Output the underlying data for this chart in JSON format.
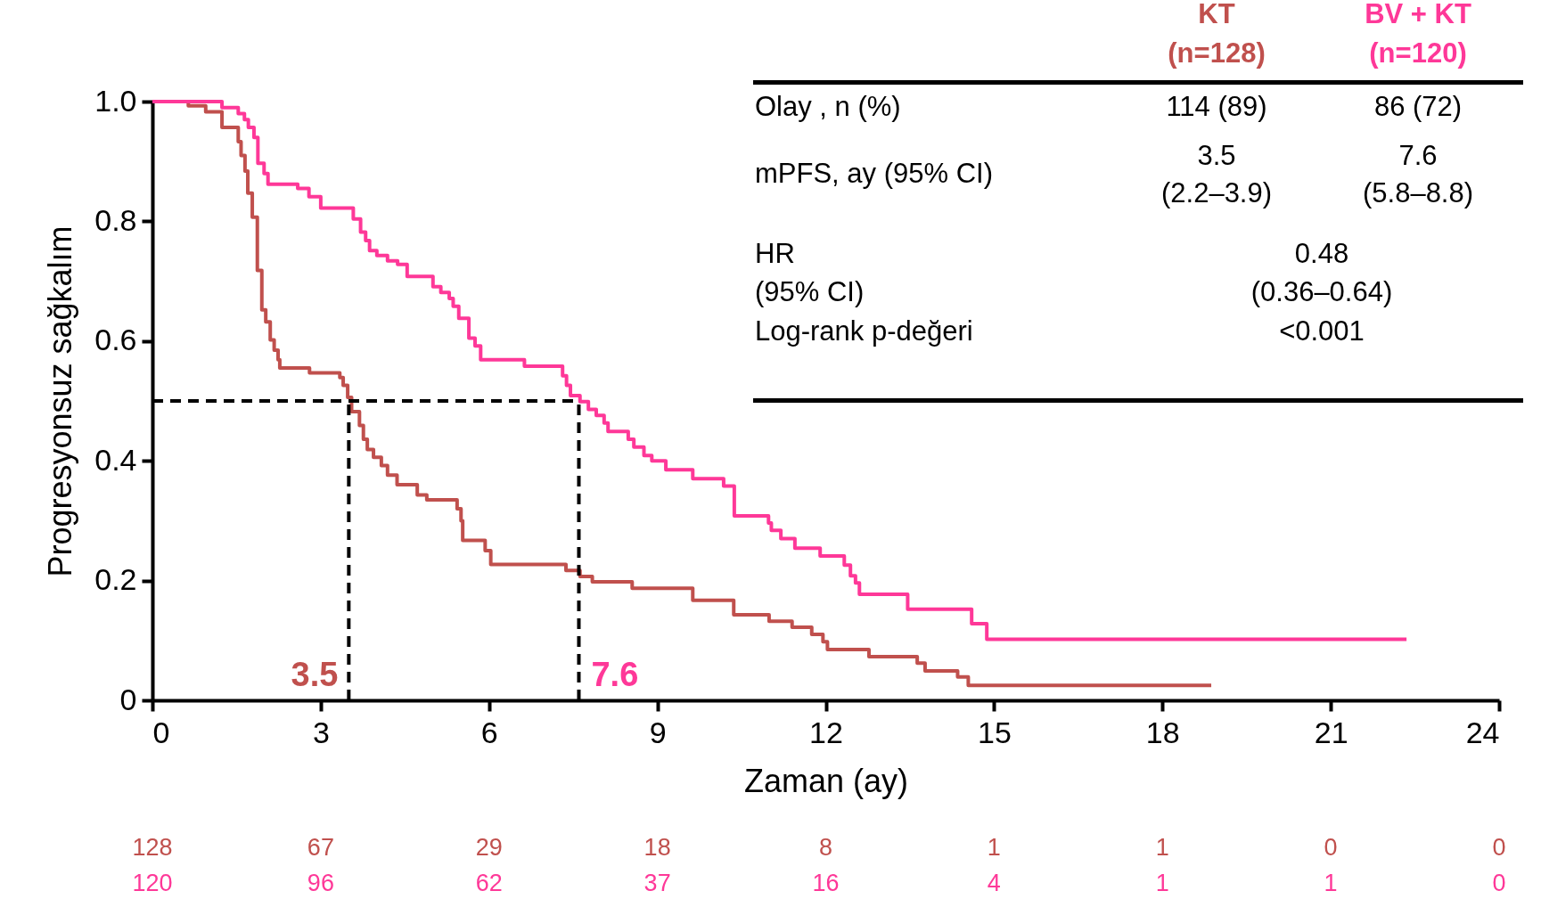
{
  "chart_data": {
    "type": "step",
    "xlabel": "Zaman  (ay)",
    "ylabel": "Progresyonsuz sağkalım",
    "xlim": [
      0,
      24
    ],
    "xticks": [
      0,
      3,
      6,
      9,
      12,
      15,
      18,
      21,
      24
    ],
    "ylim": [
      0,
      1
    ],
    "yticks": [
      {
        "value": 0,
        "label": "0"
      },
      0.2,
      0.4,
      0.6,
      0.8,
      {
        "value": 1,
        "label": "1.0"
      }
    ],
    "line_style": "solid",
    "series": [
      {
        "color": "#c0504d",
        "x": [
          0,
          0.64,
          0.95,
          1.24,
          1.53,
          1.58,
          1.65,
          1.7,
          1.78,
          1.87,
          1.95,
          2.02,
          2.1,
          2.17,
          2.24,
          2.27,
          2.8,
          3.34,
          3.4,
          3.48,
          3.55,
          3.69,
          3.76,
          3.83,
          3.94,
          4.08,
          4.19,
          4.36,
          4.72,
          4.89,
          5.43,
          5.5,
          5.53,
          5.93,
          6.03,
          7.37,
          7.62,
          7.84,
          8.55,
          9.63,
          10.36,
          10.99,
          11.4,
          11.75,
          11.95,
          12.03,
          12.77,
          13.63,
          13.77,
          14.35,
          14.54,
          18.87
        ],
        "values": [
          1,
          0.993,
          0.983,
          0.957,
          0.933,
          0.91,
          0.884,
          0.847,
          0.807,
          0.718,
          0.652,
          0.632,
          0.602,
          0.585,
          0.569,
          0.555,
          0.547,
          0.539,
          0.526,
          0.506,
          0.482,
          0.459,
          0.436,
          0.419,
          0.406,
          0.392,
          0.376,
          0.36,
          0.343,
          0.335,
          0.32,
          0.3,
          0.267,
          0.25,
          0.227,
          0.217,
          0.207,
          0.198,
          0.187,
          0.167,
          0.143,
          0.132,
          0.122,
          0.11,
          0.098,
          0.085,
          0.073,
          0.062,
          0.049,
          0.039,
          0.025,
          0.025
        ]
      },
      {
        "color": "#fe3898",
        "x": [
          0,
          1.24,
          1.53,
          1.64,
          1.71,
          1.81,
          1.88,
          1.99,
          2.06,
          2.59,
          2.79,
          3.0,
          3.58,
          3.71,
          3.8,
          3.87,
          4.0,
          4.19,
          4.37,
          4.54,
          5.0,
          5.14,
          5.29,
          5.36,
          5.46,
          5.64,
          5.75,
          5.85,
          6.63,
          7.31,
          7.38,
          7.45,
          7.62,
          7.77,
          7.91,
          8.05,
          8.12,
          8.48,
          8.58,
          8.76,
          8.9,
          9.15,
          9.63,
          10.18,
          10.37,
          10.98,
          11.03,
          11.2,
          11.45,
          11.9,
          12.33,
          12.44,
          12.53,
          12.6,
          13.46,
          14.6,
          14.87,
          22.35
        ],
        "values": [
          1,
          0.99,
          0.98,
          0.97,
          0.957,
          0.94,
          0.897,
          0.88,
          0.862,
          0.855,
          0.841,
          0.822,
          0.804,
          0.782,
          0.768,
          0.751,
          0.743,
          0.734,
          0.728,
          0.708,
          0.691,
          0.681,
          0.671,
          0.658,
          0.638,
          0.605,
          0.592,
          0.569,
          0.558,
          0.542,
          0.526,
          0.509,
          0.499,
          0.486,
          0.476,
          0.463,
          0.449,
          0.436,
          0.423,
          0.409,
          0.4,
          0.385,
          0.37,
          0.358,
          0.308,
          0.296,
          0.284,
          0.27,
          0.254,
          0.241,
          0.226,
          0.208,
          0.196,
          0.177,
          0.152,
          0.128,
          0.102,
          0.102
        ]
      }
    ],
    "ref_lines": [
      {
        "axis": "y",
        "value": 0.5,
        "color": "#000000",
        "line_style": "dashed"
      },
      {
        "axis": "x",
        "value": 3.5,
        "label": "3.5",
        "color": "#000000",
        "line_style": "dashed"
      },
      {
        "axis": "x",
        "value": 7.6,
        "label": "7.6",
        "color": "#000000",
        "line_style": "dashed"
      }
    ],
    "annotations": [
      "KT",
      "(n=128)",
      "BV + KT",
      "(n=120)",
      "Olay , n (%)",
      "114 (89)",
      "86 (72)",
      "mPFS, ay (95% CI)",
      "3.5",
      "(2.2–3.9)",
      "7.6",
      "(5.8–8.8)",
      "HR",
      " (95% CI)",
      "0.48",
      "(0.36–0.64)",
      "Log-rank p-değeri",
      "<0.001",
      "128",
      "67",
      "29",
      "18",
      "8",
      "1",
      "1",
      "0",
      "0",
      "120",
      "96",
      "62",
      "37",
      "16",
      "4",
      "1",
      "1",
      "0"
    ]
  }
}
